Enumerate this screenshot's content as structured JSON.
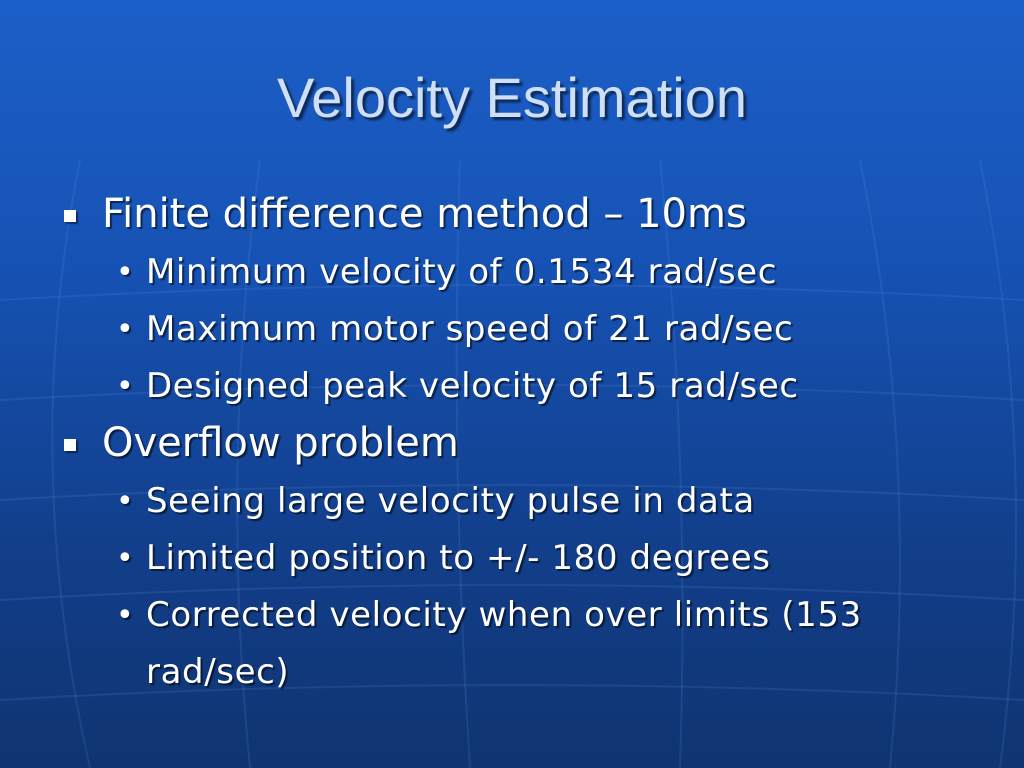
{
  "slide": {
    "title": "Velocity Estimation",
    "bullets": [
      {
        "text": "Finite difference method – 10ms",
        "sub": [
          "Minimum velocity of 0.1534 rad/sec",
          "Maximum motor speed of 21 rad/sec",
          "Designed peak velocity of 15 rad/sec"
        ]
      },
      {
        "text": "Overflow problem",
        "sub": [
          "Seeing large velocity pulse in data",
          "Limited position to +/- 180 degrees",
          "Corrected velocity when over limits (153 rad/sec)"
        ]
      }
    ]
  },
  "colors": {
    "background_top": "#1c5fc8",
    "background_bottom": "#0f3470",
    "title": "#cfe0f6",
    "text": "#ffffff"
  }
}
